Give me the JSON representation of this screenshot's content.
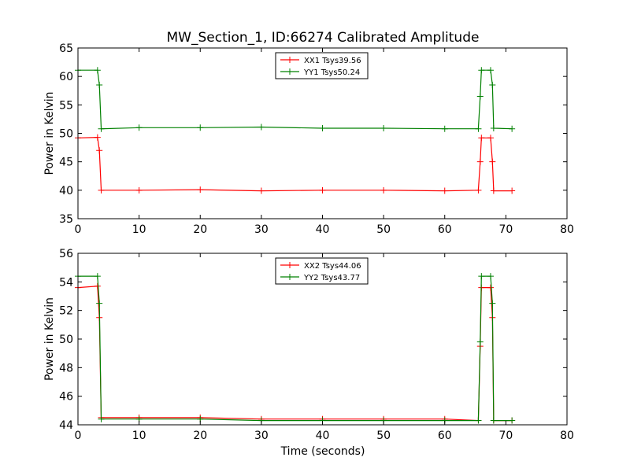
{
  "chart_data": [
    {
      "type": "line",
      "title": "MW_Section_1, ID:66274 Calibrated Amplitude",
      "xlabel": "",
      "ylabel": "Power in Kelvin",
      "xlim": [
        0,
        80
      ],
      "ylim": [
        35,
        65
      ],
      "xticks": [
        "0",
        "10",
        "20",
        "30",
        "40",
        "50",
        "60",
        "70",
        "80"
      ],
      "yticks": [
        "35",
        "40",
        "45",
        "50",
        "55",
        "60",
        "65"
      ],
      "legend_position": "top-center",
      "grid": false,
      "series": [
        {
          "name": "XX1 Tsys39.56",
          "color": "#ff0000",
          "x": [
            0,
            3.2,
            3.5,
            3.8,
            10,
            20,
            30,
            40,
            50,
            60,
            65.5,
            65.8,
            66,
            67.5,
            67.8,
            68,
            71
          ],
          "y": [
            49.2,
            49.3,
            47.0,
            40.0,
            40.0,
            40.1,
            39.9,
            40.0,
            40.0,
            39.9,
            40.0,
            45.0,
            49.2,
            49.2,
            45.0,
            39.9,
            39.9
          ]
        },
        {
          "name": "YY1 Tsys50.24",
          "color": "#008000",
          "x": [
            0,
            3.2,
            3.5,
            3.8,
            10,
            20,
            30,
            40,
            50,
            60,
            65.5,
            65.8,
            66,
            67.5,
            67.8,
            68,
            71
          ],
          "y": [
            61.1,
            61.1,
            58.5,
            50.8,
            51.0,
            51.0,
            51.1,
            50.9,
            50.9,
            50.8,
            50.8,
            56.5,
            61.1,
            61.1,
            58.5,
            50.9,
            50.8
          ]
        }
      ]
    },
    {
      "type": "line",
      "title": "",
      "xlabel": "Time (seconds)",
      "ylabel": "Power in Kelvin",
      "xlim": [
        0,
        80
      ],
      "ylim": [
        44,
        56
      ],
      "xticks": [
        "0",
        "10",
        "20",
        "30",
        "40",
        "50",
        "60",
        "70",
        "80"
      ],
      "yticks": [
        "44",
        "46",
        "48",
        "50",
        "52",
        "54",
        "56"
      ],
      "legend_position": "top-center",
      "grid": false,
      "series": [
        {
          "name": "XX2 Tsys44.06",
          "color": "#ff0000",
          "x": [
            0,
            3.2,
            3.5,
            3.8,
            10,
            20,
            30,
            40,
            50,
            60,
            65.5,
            65.8,
            66,
            67.5,
            67.8,
            68,
            71
          ],
          "y": [
            53.6,
            53.7,
            51.5,
            44.5,
            44.5,
            44.5,
            44.4,
            44.4,
            44.4,
            44.4,
            44.3,
            49.5,
            53.6,
            53.6,
            51.5,
            44.3,
            44.3
          ]
        },
        {
          "name": "YY2 Tsys43.77",
          "color": "#008000",
          "x": [
            0,
            3.2,
            3.5,
            3.8,
            10,
            20,
            30,
            40,
            50,
            60,
            65.5,
            65.8,
            66,
            67.5,
            67.8,
            68,
            71
          ],
          "y": [
            54.4,
            54.4,
            52.5,
            44.4,
            44.4,
            44.4,
            44.3,
            44.3,
            44.3,
            44.3,
            44.3,
            49.8,
            54.4,
            54.4,
            52.5,
            44.3,
            44.3
          ]
        }
      ]
    }
  ]
}
